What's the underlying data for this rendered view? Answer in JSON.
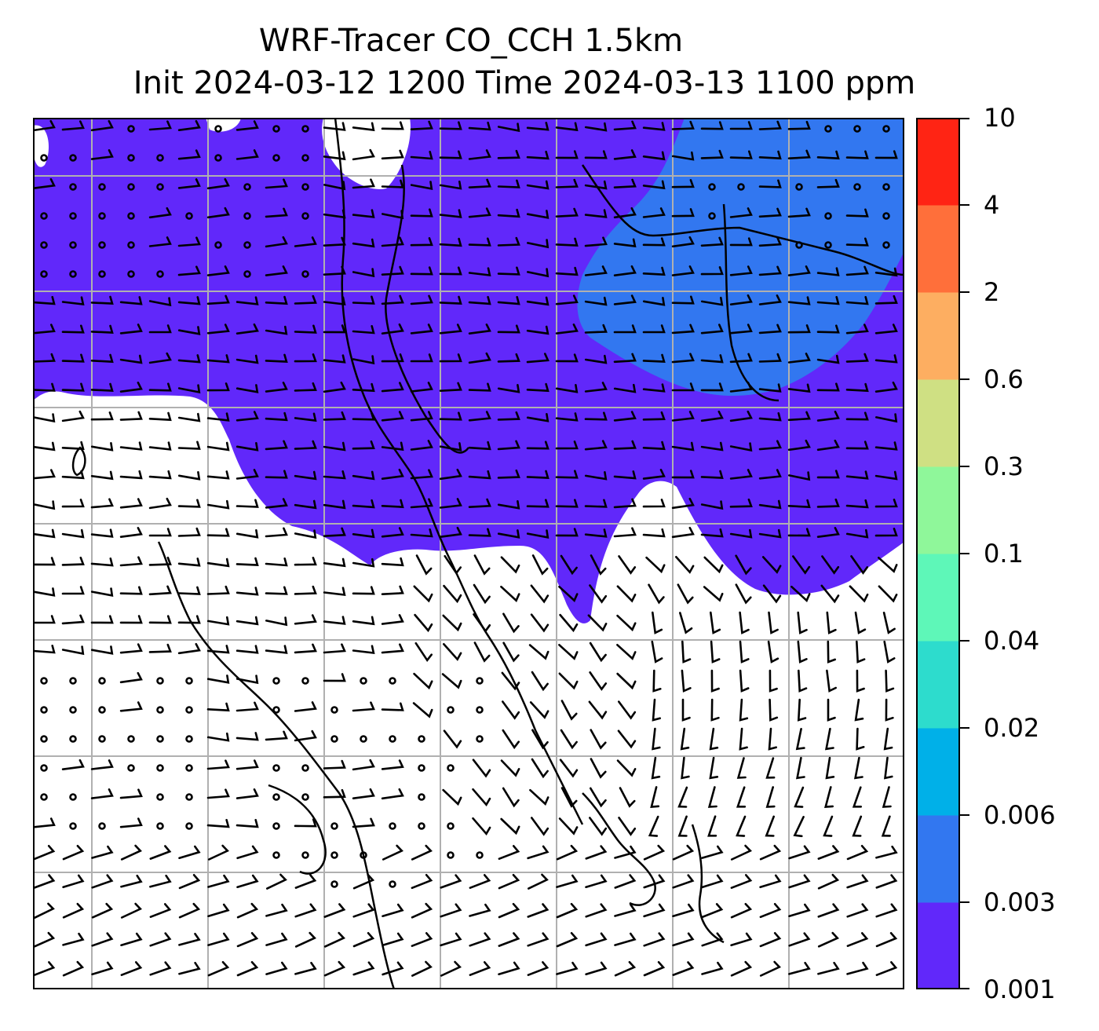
{
  "title": {
    "line1": "WRF-Tracer CO_CCH 1.5km",
    "line2": "Init 2024-03-12 1200 Time 2024-03-13 1100 ppm"
  },
  "colorbar": {
    "levels": [
      "0.001",
      "0.003",
      "0.006",
      "0.02",
      "0.04",
      "0.1",
      "0.3",
      "0.6",
      "2",
      "4",
      "10"
    ],
    "colors": [
      "#6128fa",
      "#3277f0",
      "#00b0e8",
      "#2ddccd",
      "#5ef7b8",
      "#8ff79a",
      "#cfe083",
      "#fdae61",
      "#ff6f3a",
      "#ff2414"
    ]
  },
  "map": {
    "gridlines": true,
    "background": "#ffffff",
    "coastline_color": "#000000",
    "gridline_color": "#b0b0b0"
  }
}
